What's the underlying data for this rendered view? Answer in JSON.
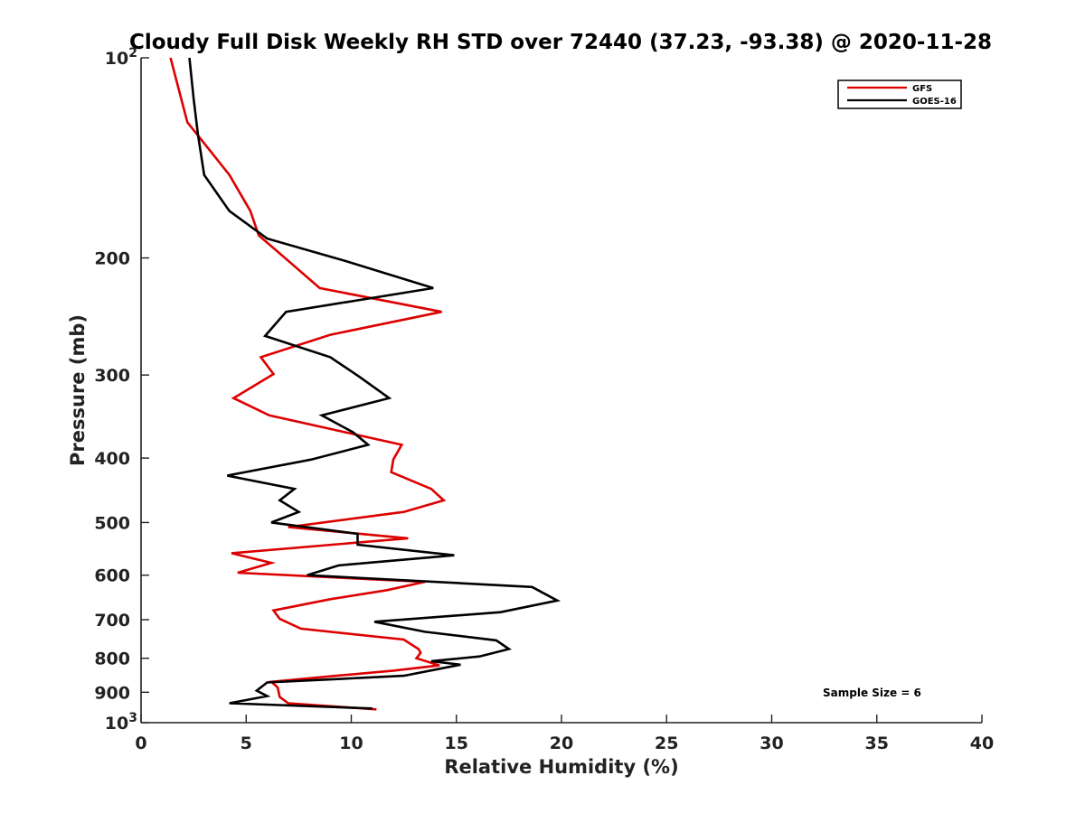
{
  "chart_data": {
    "type": "line",
    "title": "Cloudy Full Disk Weekly RH STD over 72440 (37.23, -93.38) @ 2020-11-28",
    "xlabel": "Relative Humidity (%)",
    "ylabel": "Pressure (mb)",
    "xlim": [
      0,
      40
    ],
    "ylim": [
      100,
      1000
    ],
    "yscale": "log",
    "y_direction": "reversed",
    "grid": false,
    "legend_position": "top-right",
    "x_ticks": [
      0,
      5,
      10,
      15,
      20,
      25,
      30,
      35,
      40
    ],
    "x_tick_labels": [
      "0",
      "5",
      "10",
      "15",
      "20",
      "25",
      "30",
      "35",
      "40"
    ],
    "y_ticks": [
      100,
      200,
      300,
      400,
      500,
      600,
      700,
      800,
      900,
      1000
    ],
    "y_tick_labels": [
      {
        "base": "10",
        "exp": "2"
      },
      {
        "base": "200",
        "exp": ""
      },
      {
        "base": "300",
        "exp": ""
      },
      {
        "base": "400",
        "exp": ""
      },
      {
        "base": "500",
        "exp": ""
      },
      {
        "base": "600",
        "exp": ""
      },
      {
        "base": "700",
        "exp": ""
      },
      {
        "base": "800",
        "exp": ""
      },
      {
        "base": "900",
        "exp": ""
      },
      {
        "base": "10",
        "exp": "3"
      }
    ],
    "annotation": "Sample Size = 6",
    "series": [
      {
        "name": "GFS",
        "color": "#dd0000",
        "points": [
          [
            1.4,
            100
          ],
          [
            2.2,
            125
          ],
          [
            4.2,
            150
          ],
          [
            5.2,
            170
          ],
          [
            5.6,
            185
          ],
          [
            7.0,
            202
          ],
          [
            8.5,
            222
          ],
          [
            14.3,
            241
          ],
          [
            9.0,
            261
          ],
          [
            5.7,
            282
          ],
          [
            6.3,
            299
          ],
          [
            4.4,
            325
          ],
          [
            6.1,
            345
          ],
          [
            12.4,
            382
          ],
          [
            12.0,
            402
          ],
          [
            11.9,
            420
          ],
          [
            13.8,
            445
          ],
          [
            14.4,
            463
          ],
          [
            12.5,
            482
          ],
          [
            7.0,
            508
          ],
          [
            12.7,
            528
          ],
          [
            4.3,
            556
          ],
          [
            6.2,
            575
          ],
          [
            4.6,
            595
          ],
          [
            13.5,
            614
          ],
          [
            11.7,
            632
          ],
          [
            9.0,
            652
          ],
          [
            6.3,
            678
          ],
          [
            6.6,
            698
          ],
          [
            7.6,
            722
          ],
          [
            12.5,
            750
          ],
          [
            13.2,
            775
          ],
          [
            13.3,
            785
          ],
          [
            13.1,
            800
          ],
          [
            14.2,
            820
          ],
          [
            12.0,
            835
          ],
          [
            9.3,
            850
          ],
          [
            6.2,
            868
          ],
          [
            6.5,
            885
          ],
          [
            6.6,
            915
          ],
          [
            7.0,
            935
          ],
          [
            11.2,
            955
          ]
        ]
      },
      {
        "name": "GOES-16",
        "color": "#000000",
        "points": [
          [
            2.3,
            100
          ],
          [
            2.5,
            115
          ],
          [
            2.7,
            130
          ],
          [
            3.0,
            150
          ],
          [
            4.2,
            170
          ],
          [
            6.0,
            187
          ],
          [
            9.7,
            202
          ],
          [
            13.9,
            222
          ],
          [
            6.9,
            241
          ],
          [
            5.9,
            262
          ],
          [
            9.0,
            282
          ],
          [
            10.4,
            302
          ],
          [
            11.8,
            325
          ],
          [
            8.6,
            345
          ],
          [
            10.1,
            366
          ],
          [
            10.8,
            382
          ],
          [
            8.1,
            402
          ],
          [
            4.1,
            425
          ],
          [
            7.3,
            445
          ],
          [
            6.6,
            463
          ],
          [
            7.5,
            482
          ],
          [
            6.2,
            500
          ],
          [
            10.3,
            520
          ],
          [
            10.3,
            540
          ],
          [
            14.9,
            560
          ],
          [
            9.4,
            580
          ],
          [
            7.9,
            600
          ],
          [
            18.6,
            625
          ],
          [
            19.8,
            655
          ],
          [
            17.1,
            682
          ],
          [
            11.1,
            705
          ],
          [
            13.5,
            730
          ],
          [
            16.9,
            752
          ],
          [
            17.5,
            775
          ],
          [
            16.1,
            795
          ],
          [
            13.8,
            808
          ],
          [
            15.2,
            818
          ],
          [
            12.5,
            850
          ],
          [
            6.0,
            870
          ],
          [
            5.5,
            895
          ],
          [
            6.0,
            912
          ],
          [
            4.2,
            935
          ],
          [
            11.0,
            952
          ]
        ]
      }
    ]
  }
}
